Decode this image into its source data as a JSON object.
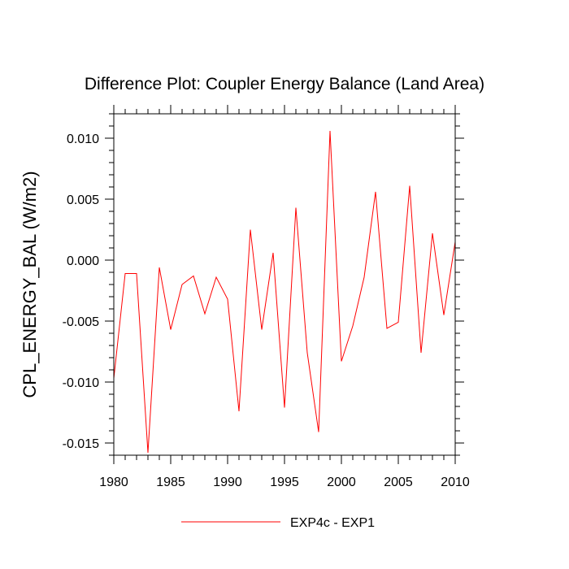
{
  "chart_data": {
    "type": "line",
    "title": "Difference Plot: Coupler Energy Balance (Land Area)",
    "xlabel": "",
    "ylabel": "CPL_ENERGY_BAL  (W/m2)",
    "xlim": [
      1980,
      2010
    ],
    "ylim": [
      -0.016,
      0.012
    ],
    "x_ticks": [
      1980,
      1985,
      1990,
      1995,
      2000,
      2005,
      2010
    ],
    "x_tick_labels": [
      "1980",
      "1985",
      "1990",
      "1995",
      "2000",
      "2005",
      "2010"
    ],
    "y_ticks": [
      0.01,
      0.005,
      0.0,
      -0.005,
      -0.01,
      -0.015
    ],
    "y_tick_labels": [
      "0.010",
      "0.005",
      "0.000",
      "-0.005",
      "-0.010",
      "-0.015"
    ],
    "grid": false,
    "legend_position": "bottom-center",
    "series": [
      {
        "name": "EXP4c - EXP1",
        "color": "#ff0000",
        "x": [
          1980,
          1981,
          1982,
          1983,
          1984,
          1985,
          1986,
          1987,
          1988,
          1989,
          1990,
          1991,
          1992,
          1993,
          1994,
          1995,
          1996,
          1997,
          1998,
          1999,
          2000,
          2001,
          2002,
          2003,
          2004,
          2005,
          2006,
          2007,
          2008,
          2009,
          2010
        ],
        "y": [
          -0.0097,
          -0.0011,
          -0.0011,
          -0.0158,
          -0.0006,
          -0.0057,
          -0.002,
          -0.0013,
          -0.0044,
          -0.0014,
          -0.0032,
          -0.0124,
          0.0025,
          -0.0057,
          0.0006,
          -0.0121,
          0.0043,
          -0.0076,
          -0.0141,
          0.0106,
          -0.0083,
          -0.0054,
          -0.0014,
          0.0056,
          -0.0056,
          -0.0051,
          0.0061,
          -0.0076,
          0.0022,
          -0.0045,
          0.0015
        ]
      }
    ]
  }
}
